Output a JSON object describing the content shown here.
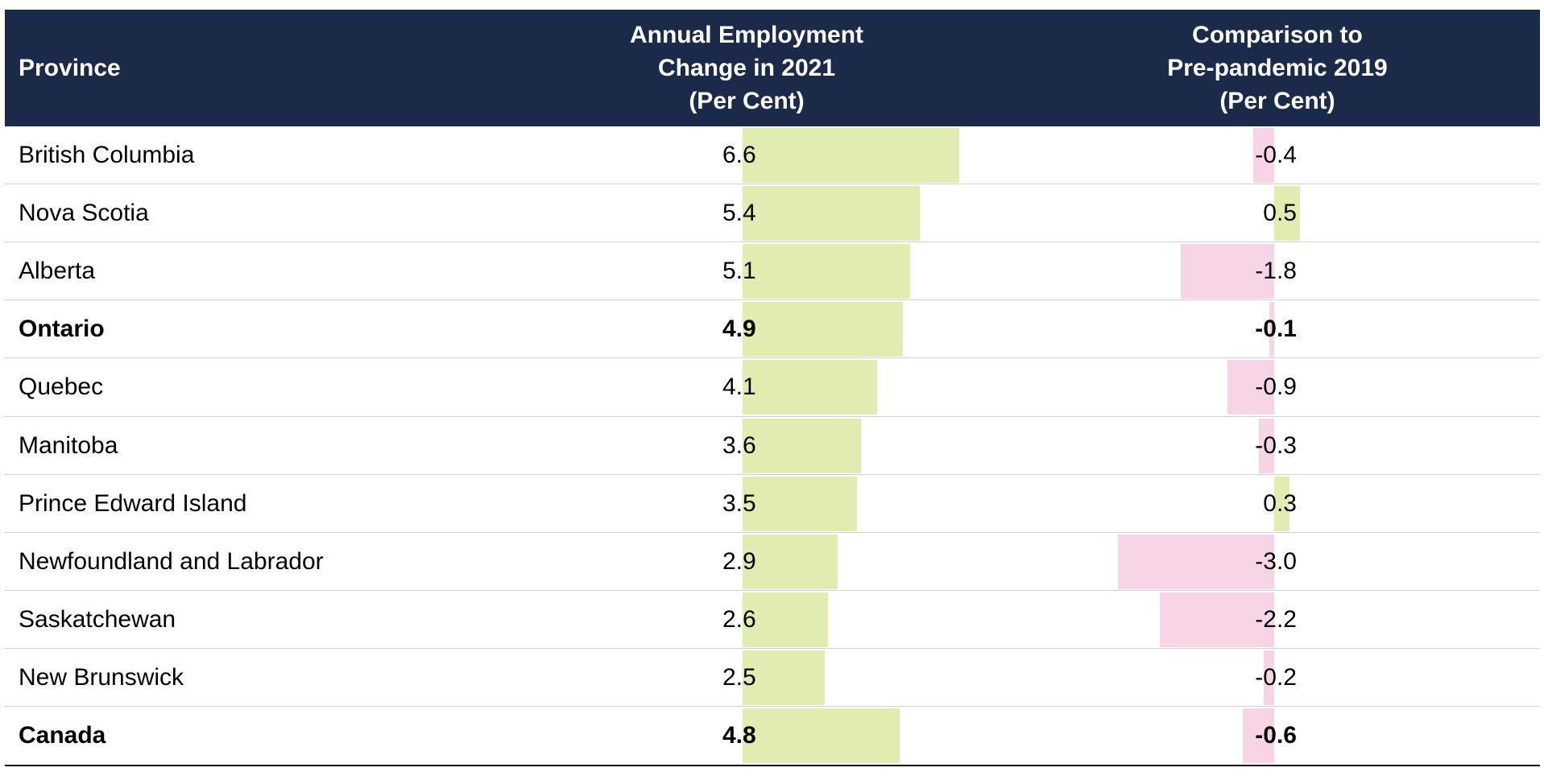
{
  "colors": {
    "header_bg": "#1c2a4a",
    "header_text": "#ffffff",
    "positive_bar": "#e1edb0",
    "negative_bar": "#f8d5e6",
    "row_divider": "#d0d0d0",
    "bottom_rule": "#000000"
  },
  "header": {
    "province_label": "Province",
    "annual_change_lines": [
      "Annual Employment",
      "Change in 2021",
      "(Per Cent)"
    ],
    "comparison_lines": [
      "Comparison to",
      "Pre-pandemic 2019",
      "(Per Cent)"
    ]
  },
  "chart_data": {
    "type": "table",
    "columns": [
      "Province",
      "Annual Employment Change in 2021 (Per Cent)",
      "Comparison to Pre-pandemic 2019 (Per Cent)"
    ],
    "rows": [
      {
        "province": "British Columbia",
        "annual_change": 6.6,
        "annual_change_text": "6.6",
        "vs_2019": -0.4,
        "vs_2019_text": "-0.4",
        "bold": false
      },
      {
        "province": "Nova Scotia",
        "annual_change": 5.4,
        "annual_change_text": "5.4",
        "vs_2019": 0.5,
        "vs_2019_text": "0.5",
        "bold": false
      },
      {
        "province": "Alberta",
        "annual_change": 5.1,
        "annual_change_text": "5.1",
        "vs_2019": -1.8,
        "vs_2019_text": "-1.8",
        "bold": false
      },
      {
        "province": "Ontario",
        "annual_change": 4.9,
        "annual_change_text": "4.9",
        "vs_2019": -0.1,
        "vs_2019_text": "-0.1",
        "bold": true
      },
      {
        "province": "Quebec",
        "annual_change": 4.1,
        "annual_change_text": "4.1",
        "vs_2019": -0.9,
        "vs_2019_text": "-0.9",
        "bold": false
      },
      {
        "province": "Manitoba",
        "annual_change": 3.6,
        "annual_change_text": "3.6",
        "vs_2019": -0.3,
        "vs_2019_text": "-0.3",
        "bold": false
      },
      {
        "province": "Prince Edward Island",
        "annual_change": 3.5,
        "annual_change_text": "3.5",
        "vs_2019": 0.3,
        "vs_2019_text": "0.3",
        "bold": false
      },
      {
        "province": "Newfoundland and Labrador",
        "annual_change": 2.9,
        "annual_change_text": "2.9",
        "vs_2019": -3.0,
        "vs_2019_text": "-3.0",
        "bold": false
      },
      {
        "province": "Saskatchewan",
        "annual_change": 2.6,
        "annual_change_text": "2.6",
        "vs_2019": -2.2,
        "vs_2019_text": "-2.2",
        "bold": false
      },
      {
        "province": "New Brunswick",
        "annual_change": 2.5,
        "annual_change_text": "2.5",
        "vs_2019": -0.2,
        "vs_2019_text": "-0.2",
        "bold": false
      },
      {
        "province": "Canada",
        "annual_change": 4.8,
        "annual_change_text": "4.8",
        "vs_2019": -0.6,
        "vs_2019_text": "-0.6",
        "bold": true
      }
    ]
  }
}
